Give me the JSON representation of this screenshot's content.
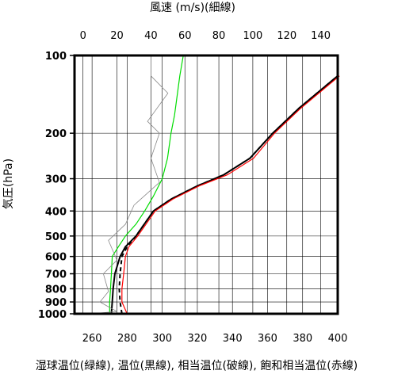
{
  "chart_data": {
    "type": "line",
    "title": "",
    "top_axis": {
      "label": "風速 (m/s)(細線)",
      "range": [
        -5,
        150
      ],
      "ticks": [
        0,
        20,
        40,
        60,
        80,
        100,
        120,
        140
      ]
    },
    "bottom_axis": {
      "label": "湿球温位(緑線), 温位(黒線), 相当温位(破線), 飽和相当温位(赤線)",
      "range": [
        250,
        400
      ],
      "ticks": [
        260,
        280,
        300,
        320,
        340,
        360,
        380,
        400
      ]
    },
    "y_axis": {
      "label": "気圧(hPa)",
      "scale": "log",
      "inverted": true,
      "range": [
        1000,
        100
      ],
      "ticks": [
        100,
        200,
        300,
        400,
        500,
        600,
        700,
        800,
        900,
        1000
      ]
    },
    "grid": true,
    "series": [
      {
        "name": "湿球温位",
        "axis": "bottom",
        "color": "#00dd00",
        "style": "solid",
        "points": [
          [
            270,
            1000
          ],
          [
            270,
            900
          ],
          [
            270.5,
            800
          ],
          [
            271,
            700
          ],
          [
            271.5,
            600
          ],
          [
            275,
            550
          ],
          [
            279,
            500
          ],
          [
            285,
            450
          ],
          [
            290,
            400
          ],
          [
            295,
            350
          ],
          [
            300,
            300
          ],
          [
            303,
            250
          ],
          [
            305,
            200
          ],
          [
            307,
            170
          ],
          [
            310,
            120
          ],
          [
            312,
            100
          ]
        ]
      },
      {
        "name": "温位",
        "axis": "bottom",
        "color": "#000000",
        "style": "solid",
        "points": [
          [
            271,
            1000
          ],
          [
            271.5,
            900
          ],
          [
            272,
            800
          ],
          [
            273,
            700
          ],
          [
            276,
            600
          ],
          [
            279,
            550
          ],
          [
            285,
            500
          ],
          [
            295,
            400
          ],
          [
            305,
            360
          ],
          [
            320,
            320
          ],
          [
            335,
            290
          ],
          [
            350,
            250
          ],
          [
            363,
            200
          ],
          [
            378,
            160
          ],
          [
            400,
            120
          ]
        ]
      },
      {
        "name": "相当温位",
        "axis": "bottom",
        "color": "#000000",
        "style": "dashed",
        "points": [
          [
            277,
            1000
          ],
          [
            276,
            900
          ],
          [
            275.5,
            800
          ],
          [
            276,
            700
          ],
          [
            277,
            600
          ],
          [
            280,
            550
          ],
          [
            285,
            500
          ],
          [
            295,
            400
          ],
          [
            305,
            360
          ],
          [
            320,
            320
          ],
          [
            335,
            290
          ],
          [
            350,
            250
          ],
          [
            363,
            200
          ],
          [
            378,
            160
          ],
          [
            400,
            120
          ]
        ]
      },
      {
        "name": "飽和相当温位",
        "axis": "bottom",
        "color": "#ff0000",
        "style": "solid",
        "points": [
          [
            280,
            1000
          ],
          [
            277,
            900
          ],
          [
            277,
            800
          ],
          [
            278,
            700
          ],
          [
            279,
            600
          ],
          [
            281,
            550
          ],
          [
            286,
            500
          ],
          [
            296,
            400
          ],
          [
            306,
            360
          ],
          [
            321,
            320
          ],
          [
            337,
            290
          ],
          [
            352,
            250
          ],
          [
            364,
            200
          ],
          [
            379,
            160
          ],
          [
            401,
            120
          ]
        ]
      },
      {
        "name": "風速",
        "axis": "top",
        "color": "#888888",
        "style": "solid",
        "points": [
          [
            5,
            1000
          ],
          [
            20,
            980
          ],
          [
            10,
            900
          ],
          [
            15,
            820
          ],
          [
            12,
            700
          ],
          [
            20,
            620
          ],
          [
            15,
            520
          ],
          [
            25,
            450
          ],
          [
            30,
            380
          ],
          [
            45,
            310
          ],
          [
            40,
            250
          ],
          [
            45,
            200
          ],
          [
            38,
            180
          ],
          [
            50,
            140
          ],
          [
            40,
            120
          ],
          [
            40,
            100
          ]
        ]
      }
    ]
  }
}
